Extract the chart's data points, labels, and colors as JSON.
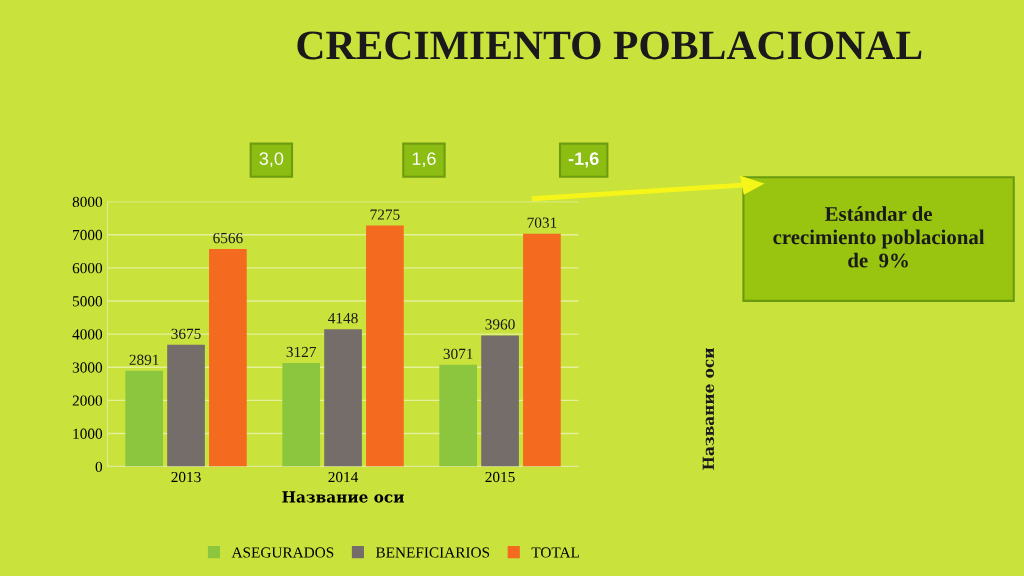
{
  "chart_data": {
    "type": "bar",
    "title": "CRECIMIENTO POBLACIONAL",
    "categories": [
      "2013",
      "2014",
      "2015"
    ],
    "series": [
      {
        "name": "ASEGURADOS",
        "color": "#8cc63e",
        "values": [
          2891,
          3127,
          3071
        ]
      },
      {
        "name": "BENEFICIARIOS",
        "color": "#756d69",
        "values": [
          3675,
          4148,
          3960
        ]
      },
      {
        "name": "TOTAL",
        "color": "#f46a1f",
        "values": [
          6566,
          7275,
          7031
        ]
      }
    ],
    "xlabel": "Название оси",
    "ylim": [
      0,
      8000
    ],
    "yticks": [
      0,
      1000,
      2000,
      3000,
      4000,
      5000,
      6000,
      7000,
      8000
    ],
    "grid": "y",
    "legend": "bottom",
    "data_labels": true,
    "annotations": [
      "3,0",
      "1,6",
      "-1,6",
      "Estándar de\ncrecimiento poblacional\nde  9%",
      "Название оси"
    ]
  }
}
